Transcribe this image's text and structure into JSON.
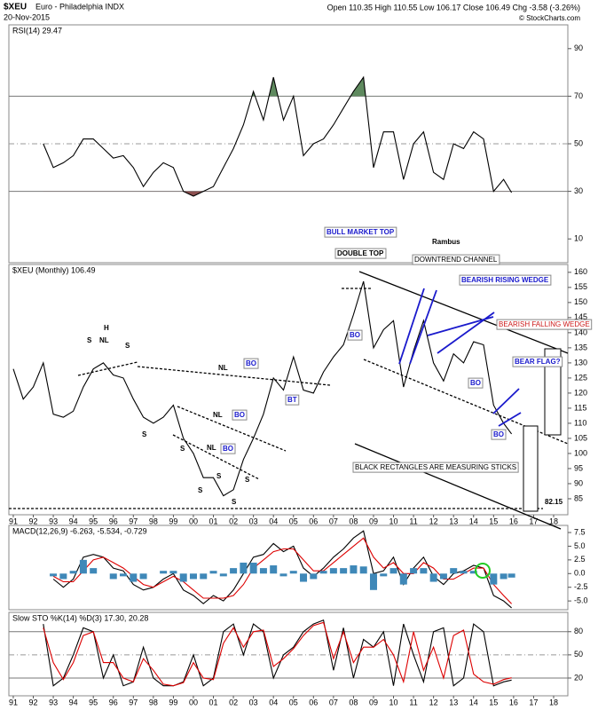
{
  "header": {
    "symbol": "$XEU",
    "name": "Euro - Philadelphia INDX",
    "date": "20-Nov-2015",
    "quote": "Open 110.35 High 110.55 Low 106.17 Close 106.49 Chg -3.58 (-3.26%)",
    "credit": "© StockCharts.com"
  },
  "annotations": [
    "BULL MARKET TOP",
    "DOUBLE TOP",
    "Rambus",
    "DOWNTREND CHANNEL",
    "BEARISH RISING WEDGE",
    "BEARISH FALLING WEDGE",
    "BEAR FLAG?",
    "BLACK RECTANGLES ARE MEASURING STICKS",
    "82.15",
    "BO",
    "BO",
    "BO",
    "BO",
    "BO",
    "BO",
    "BT",
    "NL",
    "NL",
    "NL",
    "NL",
    "H",
    "S",
    "S",
    "S",
    "S",
    "S",
    "S",
    "S",
    "S"
  ],
  "chart_data": [
    {
      "type": "line",
      "label": "RSI(14) 29.47",
      "xlim": [
        1990.78,
        2018.71
      ],
      "ylim": [
        0,
        100
      ],
      "yticks": [
        10,
        30,
        50,
        70,
        90
      ],
      "reference_lines": [
        70,
        50,
        30
      ],
      "x": [
        1991,
        1991.5,
        1992,
        1992.5,
        1993,
        1993.5,
        1994,
        1994.5,
        1995,
        1995.5,
        1996,
        1996.5,
        1997,
        1997.5,
        1998,
        1998.5,
        1999,
        1999.5,
        2000,
        2000.5,
        2001,
        2001.5,
        2002,
        2002.5,
        2003,
        2003.5,
        2004,
        2004.5,
        2005,
        2005.5,
        2006,
        2006.5,
        2007,
        2007.5,
        2008,
        2008.5,
        2009,
        2009.5,
        2010,
        2010.5,
        2011,
        2011.5,
        2012,
        2012.5,
        2013,
        2013.5,
        2014,
        2014.5,
        2015,
        2015.5,
        2015.9
      ],
      "series": [
        {
          "name": "RSI(14)",
          "color": "#000000",
          "values": [
            null,
            null,
            null,
            50,
            40,
            42,
            45,
            52,
            52,
            48,
            44,
            45,
            40,
            32,
            38,
            42,
            40,
            30,
            28,
            30,
            32,
            40,
            48,
            58,
            72,
            60,
            78,
            60,
            70,
            45,
            50,
            52,
            58,
            65,
            72,
            78,
            40,
            55,
            55,
            35,
            50,
            55,
            38,
            35,
            50,
            48,
            55,
            52,
            30,
            35,
            29.47
          ]
        }
      ]
    },
    {
      "type": "line",
      "label": "$XEU (Monthly) 106.49",
      "xlim": [
        1990.78,
        2018.71
      ],
      "ylim": [
        79.7,
        162.6
      ],
      "yticks": [
        85,
        90,
        95,
        100,
        105,
        110,
        115,
        120,
        125,
        130,
        135,
        140,
        145,
        150,
        155,
        160
      ],
      "xticks": [
        {
          "value": 1991,
          "label": "91"
        },
        {
          "value": 1992,
          "label": "92"
        },
        {
          "value": 1993,
          "label": "93"
        },
        {
          "value": 1994,
          "label": "94"
        },
        {
          "value": 1995,
          "label": "95"
        },
        {
          "value": 1996,
          "label": "96"
        },
        {
          "value": 1997,
          "label": "97"
        },
        {
          "value": 1998,
          "label": "98"
        },
        {
          "value": 1999,
          "label": "99"
        },
        {
          "value": 2000,
          "label": "00"
        },
        {
          "value": 2001,
          "label": "01"
        },
        {
          "value": 2002,
          "label": "02"
        },
        {
          "value": 2003,
          "label": "03"
        },
        {
          "value": 2004,
          "label": "04"
        },
        {
          "value": 2005,
          "label": "05"
        },
        {
          "value": 2006,
          "label": "06"
        },
        {
          "value": 2007,
          "label": "07"
        },
        {
          "value": 2008,
          "label": "08"
        },
        {
          "value": 2009,
          "label": "09"
        },
        {
          "value": 2010,
          "label": "10"
        },
        {
          "value": 2011,
          "label": "11"
        },
        {
          "value": 2012,
          "label": "12"
        },
        {
          "value": 2013,
          "label": "13"
        },
        {
          "value": 2014,
          "label": "14"
        },
        {
          "value": 2015,
          "label": "15"
        },
        {
          "value": 2016,
          "label": "16"
        },
        {
          "value": 2017,
          "label": "17"
        },
        {
          "value": 2018,
          "label": "18"
        }
      ],
      "x": [
        1991,
        1991.5,
        1992,
        1992.5,
        1993,
        1993.5,
        1994,
        1994.5,
        1995,
        1995.5,
        1996,
        1996.5,
        1997,
        1997.5,
        1998,
        1998.5,
        1999,
        1999.5,
        2000,
        2000.5,
        2001,
        2001.5,
        2002,
        2002.5,
        2003,
        2003.5,
        2004,
        2004.5,
        2005,
        2005.5,
        2006,
        2006.5,
        2007,
        2007.5,
        2008,
        2008.5,
        2009,
        2009.5,
        2010,
        2010.5,
        2011,
        2011.5,
        2012,
        2012.5,
        2013,
        2013.5,
        2014,
        2014.5,
        2015,
        2015.5,
        2015.9
      ],
      "series": [
        {
          "name": "$XEU",
          "color": "#000000",
          "values": [
            128,
            118,
            122,
            130,
            113,
            112,
            114,
            122,
            128,
            130,
            126,
            125,
            118,
            112,
            110,
            112,
            116,
            105,
            100,
            92,
            92,
            86,
            88,
            98,
            105,
            113,
            125,
            121,
            132,
            121,
            120,
            127,
            132,
            136,
            146,
            157,
            135,
            141,
            144,
            122,
            134,
            144,
            130,
            124,
            133,
            130,
            137,
            136,
            116,
            110,
            106.49
          ]
        }
      ]
    },
    {
      "type": "line",
      "label": "MACD(12,26,9) -6.263, -5.534, -0.729",
      "xlim": [
        1990.78,
        2018.71
      ],
      "ylim": [
        -6.6,
        8.8
      ],
      "yticks": [
        {
          "value": -5,
          "label": "-5.0"
        },
        -2.5,
        {
          "value": 0,
          "label": "0.0"
        },
        2.5,
        {
          "value": 5,
          "label": "5.0"
        },
        7.5
      ],
      "x": [
        1991,
        1991.5,
        1992,
        1992.5,
        1993,
        1993.5,
        1994,
        1994.5,
        1995,
        1995.5,
        1996,
        1996.5,
        1997,
        1997.5,
        1998,
        1998.5,
        1999,
        1999.5,
        2000,
        2000.5,
        2001,
        2001.5,
        2002,
        2002.5,
        2003,
        2003.5,
        2004,
        2004.5,
        2005,
        2005.5,
        2006,
        2006.5,
        2007,
        2007.5,
        2008,
        2008.5,
        2009,
        2009.5,
        2010,
        2010.5,
        2011,
        2011.5,
        2012,
        2012.5,
        2013,
        2013.5,
        2014,
        2014.5,
        2015,
        2015.5,
        2015.9
      ],
      "series": [
        {
          "name": "MACD",
          "color": "#000000",
          "values": [
            null,
            null,
            null,
            null,
            -1,
            -2.5,
            -1,
            3,
            3.5,
            3,
            1,
            0.5,
            -2,
            -3,
            -2.5,
            -1,
            0,
            -3,
            -4,
            -5.5,
            -4,
            -5,
            -3,
            0,
            3,
            3.5,
            5.5,
            4,
            5,
            1,
            -0.5,
            1,
            3,
            4.5,
            6.5,
            7.8,
            0,
            0.5,
            3,
            -2,
            1,
            3,
            -0.5,
            -2,
            0,
            0.5,
            1.5,
            1,
            -4,
            -5,
            -6.263
          ]
        },
        {
          "name": "Signal",
          "color": "#dd0000",
          "values": [
            null,
            null,
            null,
            null,
            -0.5,
            -1.5,
            -1.5,
            0.5,
            2.5,
            3,
            2,
            1,
            -0.5,
            -2,
            -2.5,
            -1.5,
            -0.5,
            -1.5,
            -3,
            -4.5,
            -4.5,
            -4.5,
            -4,
            -2,
            1,
            2.5,
            4,
            4.5,
            4.5,
            2.5,
            0.5,
            0.5,
            2,
            3.5,
            5,
            6.5,
            3,
            1,
            2,
            0,
            0,
            2,
            1,
            -1,
            -1,
            0,
            1,
            1,
            -2,
            -4,
            -5.534
          ]
        },
        {
          "name": "Histogram",
          "type": "bar",
          "color": "#3f88b8",
          "values": [
            null,
            null,
            null,
            null,
            -0.5,
            -1,
            0.5,
            2.5,
            1,
            0,
            -1,
            -0.5,
            -1.5,
            -1,
            0,
            0.5,
            0.5,
            -1.5,
            -1,
            -1,
            0.5,
            -0.5,
            1,
            2,
            2,
            1,
            1.5,
            -0.5,
            0.5,
            -1.5,
            -1,
            0.5,
            1,
            1,
            1.5,
            1.3,
            -3,
            -0.5,
            1,
            -2,
            1,
            1,
            -1.5,
            -1,
            1,
            0.5,
            0.5,
            0,
            -2,
            -1,
            -0.729
          ]
        }
      ]
    },
    {
      "type": "line",
      "label": "Slow STO %K(14) %D(3) 17.30, 20.28",
      "xlim": [
        1990.78,
        2018.71
      ],
      "ylim": [
        -3,
        105
      ],
      "yticks": [
        20,
        50,
        80
      ],
      "reference_lines": [
        80,
        50,
        20
      ],
      "xticks": [
        {
          "value": 1991,
          "label": "91"
        },
        {
          "value": 1992,
          "label": "92"
        },
        {
          "value": 1993,
          "label": "93"
        },
        {
          "value": 1994,
          "label": "94"
        },
        {
          "value": 1995,
          "label": "95"
        },
        {
          "value": 1996,
          "label": "96"
        },
        {
          "value": 1997,
          "label": "97"
        },
        {
          "value": 1998,
          "label": "98"
        },
        {
          "value": 1999,
          "label": "99"
        },
        {
          "value": 2000,
          "label": "00"
        },
        {
          "value": 2001,
          "label": "01"
        },
        {
          "value": 2002,
          "label": "02"
        },
        {
          "value": 2003,
          "label": "03"
        },
        {
          "value": 2004,
          "label": "04"
        },
        {
          "value": 2005,
          "label": "05"
        },
        {
          "value": 2006,
          "label": "06"
        },
        {
          "value": 2007,
          "label": "07"
        },
        {
          "value": 2008,
          "label": "08"
        },
        {
          "value": 2009,
          "label": "09"
        },
        {
          "value": 2010,
          "label": "10"
        },
        {
          "value": 2011,
          "label": "11"
        },
        {
          "value": 2012,
          "label": "12"
        },
        {
          "value": 2013,
          "label": "13"
        },
        {
          "value": 2014,
          "label": "14"
        },
        {
          "value": 2015,
          "label": "15"
        },
        {
          "value": 2016,
          "label": "16"
        },
        {
          "value": 2017,
          "label": "17"
        },
        {
          "value": 2018,
          "label": "18"
        }
      ],
      "x": [
        1991,
        1991.5,
        1992,
        1992.5,
        1993,
        1993.5,
        1994,
        1994.5,
        1995,
        1995.5,
        1996,
        1996.5,
        1997,
        1997.5,
        1998,
        1998.5,
        1999,
        1999.5,
        2000,
        2000.5,
        2001,
        2001.5,
        2002,
        2002.5,
        2003,
        2003.5,
        2004,
        2004.5,
        2005,
        2005.5,
        2006,
        2006.5,
        2007,
        2007.5,
        2008,
        2008.5,
        2009,
        2009.5,
        2010,
        2010.5,
        2011,
        2011.5,
        2012,
        2012.5,
        2013,
        2013.5,
        2014,
        2014.5,
        2015,
        2015.5,
        2015.9
      ],
      "series": [
        {
          "name": "%K",
          "color": "#000000",
          "values": [
            null,
            null,
            null,
            90,
            10,
            20,
            50,
            85,
            80,
            20,
            50,
            10,
            15,
            60,
            20,
            10,
            10,
            15,
            50,
            10,
            20,
            80,
            90,
            50,
            90,
            80,
            20,
            50,
            60,
            80,
            90,
            95,
            30,
            85,
            20,
            70,
            60,
            80,
            10,
            90,
            50,
            15,
            80,
            85,
            10,
            20,
            90,
            80,
            10,
            15,
            17.3
          ]
        },
        {
          "name": "%D",
          "color": "#dd0000",
          "values": [
            null,
            null,
            null,
            85,
            40,
            18,
            40,
            75,
            80,
            40,
            40,
            20,
            15,
            45,
            30,
            12,
            10,
            14,
            40,
            20,
            18,
            65,
            85,
            60,
            80,
            82,
            35,
            45,
            58,
            75,
            88,
            92,
            45,
            80,
            40,
            60,
            60,
            70,
            50,
            15,
            80,
            30,
            60,
            20,
            75,
            82,
            25,
            15,
            12,
            18,
            20.28
          ]
        }
      ]
    }
  ]
}
